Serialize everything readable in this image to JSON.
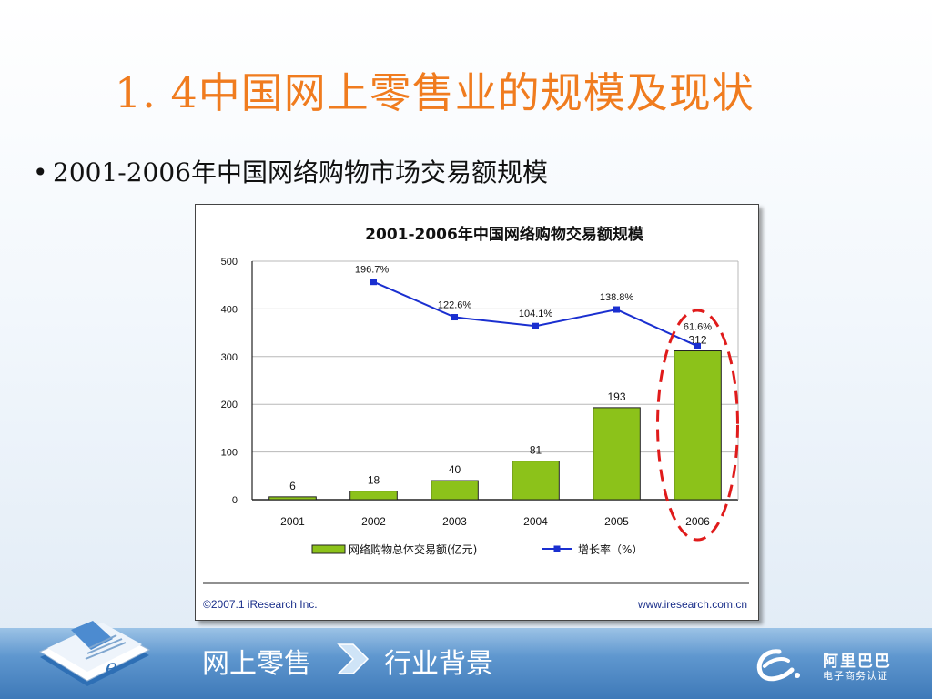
{
  "slide": {
    "title": "1. 4中国网上零售业的规模及现状",
    "bullet_marker": "•",
    "bullet": "2001-2006年中国网络购物市场交易额规模"
  },
  "chart_data": {
    "type": "bar",
    "title": "2001-2006年中国网络购物交易额规模",
    "categories": [
      "2001",
      "2002",
      "2003",
      "2004",
      "2005",
      "2006"
    ],
    "ylim": [
      0,
      500
    ],
    "yticks": [
      0,
      100,
      200,
      300,
      400,
      500
    ],
    "series": [
      {
        "name": "网络购物总体交易额(亿元)",
        "values": [
          6,
          18,
          40,
          81,
          193,
          312
        ],
        "color": "#8cc21a"
      }
    ],
    "line_series": {
      "name": "增长率（%）",
      "categories": [
        "2002",
        "2003",
        "2004",
        "2005",
        "2006"
      ],
      "values": [
        196.7,
        122.6,
        104.1,
        138.8,
        61.6
      ],
      "labels": [
        "196.7%",
        "122.6%",
        "104.1%",
        "138.8%",
        "61.6%"
      ],
      "color": "#1a2fd0"
    },
    "grid": true,
    "legend": "bottom",
    "highlight": {
      "category": "2006",
      "color": "#e01b1b",
      "style": "dashed-ellipse"
    }
  },
  "chart_footer": {
    "source": "©2007.1  iResearch Inc.",
    "url": "www.iresearch.com.cn"
  },
  "footer": {
    "crumb_1": "网上零售",
    "crumb_2": "行业背景",
    "brand_name": "阿里巴巴",
    "brand_sub": "电子商务认证"
  }
}
